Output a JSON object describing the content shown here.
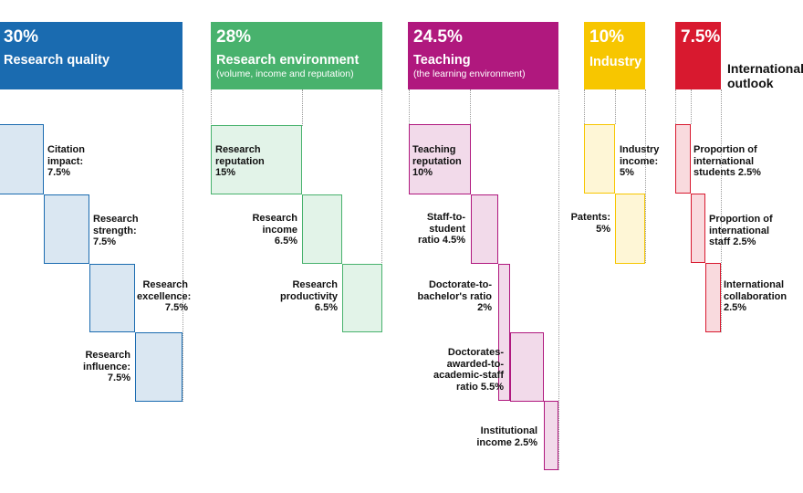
{
  "pillars": [
    {
      "percent": "30%",
      "name": "Research quality",
      "subtitle": "",
      "color": "#1a6bb0",
      "metrics": [
        {
          "label": "Citation\nimpact:\n7.5%"
        },
        {
          "label": "Research\nstrength:\n7.5%"
        },
        {
          "label": "Research\nexcellence:\n7.5%"
        },
        {
          "label": "Research\ninfluence:\n7.5%"
        }
      ]
    },
    {
      "percent": "28%",
      "name": "Research environment",
      "subtitle": "(volume, income and reputation)",
      "color": "#48b26d",
      "metrics": [
        {
          "label": "Research\nreputation\n15%"
        },
        {
          "label": "Research\nincome\n6.5%"
        },
        {
          "label": "Research\nproductivity\n6.5%"
        }
      ]
    },
    {
      "percent": "24.5%",
      "name": "Teaching",
      "subtitle": "(the learning environment)",
      "color": "#b0187e",
      "metrics": [
        {
          "label": "Teaching\nreputation\n10%"
        },
        {
          "label": "Staff-to-\nstudent\nratio 4.5%"
        },
        {
          "label": "Doctorate-to-\nbachelor's ratio\n2%"
        },
        {
          "label": "Doctorates-\nawarded-to-\nacademic-staff\nratio 5.5%"
        },
        {
          "label": "Institutional\nincome 2.5%"
        }
      ]
    },
    {
      "percent": "10%",
      "name": "Industry",
      "subtitle": "",
      "color": "#f7c600",
      "metrics": [
        {
          "label": "Industry\nincome:\n5%"
        },
        {
          "label": "Patents:\n5%"
        }
      ]
    },
    {
      "percent": "7.5%",
      "name": "International outlook",
      "subtitle": "",
      "color": "#d8192f",
      "metrics": [
        {
          "label": "Proportion of\ninternational\nstudents 2.5%"
        },
        {
          "label": "Proportion of\ninternational\nstaff 2.5%"
        },
        {
          "label": "International\ncollaboration\n2.5%"
        }
      ]
    }
  ]
}
